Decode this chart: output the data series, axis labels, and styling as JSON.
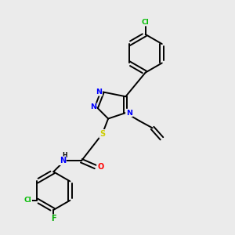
{
  "background_color": "#ebebeb",
  "bond_color": "#000000",
  "atom_colors": {
    "N": "#0000ff",
    "O": "#ff0000",
    "S": "#cccc00",
    "Cl": "#00bb00",
    "F": "#00aa00",
    "H": "#000000",
    "C": "#000000"
  },
  "figsize": [
    3.0,
    3.0
  ],
  "dpi": 100
}
